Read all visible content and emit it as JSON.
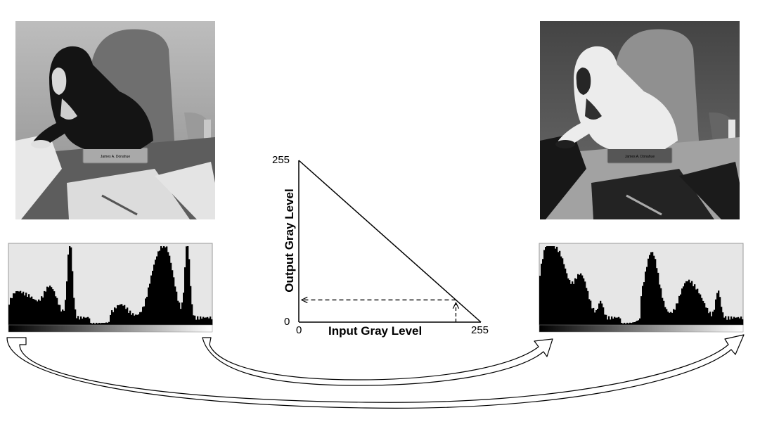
{
  "images": {
    "original": {
      "name": "puppy-original"
    },
    "negative": {
      "name": "puppy-negative"
    },
    "nameplate_text": "James A. Donahue"
  },
  "histograms": {
    "original_peaks": [
      0.35,
      0.25,
      0.4,
      1.0,
      0.2,
      0.55,
      0.75,
      1.0
    ],
    "negative_peaks": [
      1.0,
      0.75,
      0.55,
      0.2,
      1.0,
      0.4,
      0.25,
      0.35
    ]
  },
  "chart_data": {
    "type": "line",
    "title": "",
    "xlabel": "Input Gray Level",
    "ylabel": "Output Gray Level",
    "x_ticks": [
      "0",
      "255"
    ],
    "y_ticks": [
      "0",
      "255"
    ],
    "xlim": [
      0,
      255
    ],
    "ylim": [
      0,
      255
    ],
    "series": [
      {
        "x": [
          0,
          255
        ],
        "y": [
          255,
          0
        ]
      }
    ],
    "example_input": 220,
    "example_output": 35
  },
  "colors": {
    "line": "#000000",
    "panel": "#e6e6e6",
    "arrow_fill": "#ffffff"
  }
}
